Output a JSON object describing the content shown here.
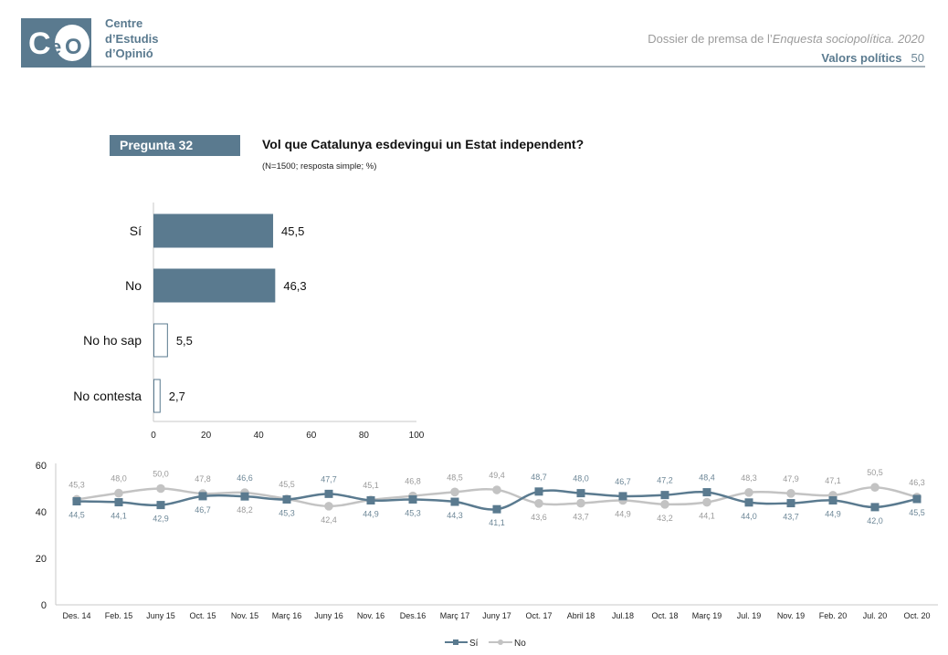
{
  "header": {
    "logo_mark": "CeO",
    "org_lines": [
      "Centre",
      "d’Estudis",
      "d’Opinió"
    ],
    "dossier_prefix": "Dossier de premsa de l’",
    "dossier_italic": "Enquesta sociopolítica. 2020",
    "section": "Valors polítics",
    "page": "50"
  },
  "question": {
    "badge": "Pregunta 32",
    "title": "Vol que Catalunya esdevingui un Estat independent?",
    "note": "(N=1500; resposta simple; %)"
  },
  "colors": {
    "brand": "#5a7a8f",
    "si_series": "#5a7a8f",
    "no_series": "#c3c3c3",
    "si_label": "#6d8797",
    "no_label": "#9a9a9a"
  },
  "chart_data": [
    {
      "type": "bar",
      "orientation": "horizontal",
      "categories": [
        "Sí",
        "No",
        "No ho sap",
        "No contesta"
      ],
      "values": [
        45.5,
        46.3,
        5.5,
        2.7
      ],
      "value_labels": [
        "45,5",
        "46,3",
        "5,5",
        "2,7"
      ],
      "filled": [
        true,
        true,
        false,
        false
      ],
      "xlim": [
        0,
        100
      ],
      "xticks": [
        "0",
        "20",
        "40",
        "60",
        "80",
        "100"
      ],
      "title": "",
      "xlabel": "",
      "ylabel": ""
    },
    {
      "type": "line",
      "categories": [
        "Des. 14",
        "Feb. 15",
        "Juny 15",
        "Oct. 15",
        "Nov. 15",
        "Març 16",
        "Juny 16",
        "Nov. 16",
        "Des.16",
        "Març 17",
        "Juny 17",
        "Oct. 17",
        "Abril 18",
        "Jul.18",
        "Oct. 18",
        "Març 19",
        "Jul. 19",
        "Nov. 19",
        "Feb. 20",
        "Jul. 20",
        "Oct. 20"
      ],
      "series": [
        {
          "name": "Sí",
          "marker": "square",
          "values": [
            44.5,
            44.1,
            42.9,
            46.7,
            46.6,
            45.3,
            47.7,
            44.9,
            45.3,
            44.3,
            41.1,
            48.7,
            48.0,
            46.7,
            47.2,
            48.4,
            44.0,
            43.7,
            44.9,
            42.0,
            45.5
          ]
        },
        {
          "name": "No",
          "marker": "circle",
          "values": [
            45.3,
            48.0,
            50.0,
            47.8,
            48.2,
            45.5,
            42.4,
            45.1,
            46.8,
            48.5,
            49.4,
            43.6,
            43.7,
            44.9,
            43.2,
            44.1,
            48.3,
            47.9,
            47.1,
            50.5,
            46.3
          ]
        }
      ],
      "labels_top": [
        "45,3",
        "48,0",
        "50,0",
        "47,8",
        "46,6",
        "45,5",
        "47,7",
        "45,1",
        "46,8",
        "48,5",
        "49,4",
        "48,7",
        "48,0",
        "46,7",
        "47,2",
        "48,4",
        "48,3",
        "47,9",
        "47,1",
        "50,5",
        "46,3"
      ],
      "labels_bottom": [
        "44,5",
        "44,1",
        "42,9",
        "46,7",
        "48,2",
        "45,3",
        "42,4",
        "44,9",
        "45,3",
        "44,3",
        "41,1",
        "43,6",
        "43,7",
        "44,9",
        "43,2",
        "44,1",
        "44,0",
        "43,7",
        "44,9",
        "42,0",
        "45,5"
      ],
      "labels_top_series": [
        "No",
        "No",
        "No",
        "No",
        "Sí",
        "No",
        "Sí",
        "No",
        "No",
        "No",
        "No",
        "Sí",
        "Sí",
        "Sí",
        "Sí",
        "Sí",
        "No",
        "No",
        "No",
        "No",
        "No"
      ],
      "labels_bottom_series": [
        "Sí",
        "Sí",
        "Sí",
        "Sí",
        "No",
        "Sí",
        "No",
        "Sí",
        "Sí",
        "Sí",
        "Sí",
        "No",
        "No",
        "No",
        "No",
        "No",
        "Sí",
        "Sí",
        "Sí",
        "Sí",
        "Sí"
      ],
      "ylim": [
        0,
        60
      ],
      "yticks": [
        "0",
        "20",
        "40",
        "60"
      ],
      "legend": {
        "position": "bottom-center",
        "entries": [
          "Sí",
          "No"
        ]
      },
      "grid": false,
      "title": "",
      "xlabel": "",
      "ylabel": ""
    }
  ]
}
